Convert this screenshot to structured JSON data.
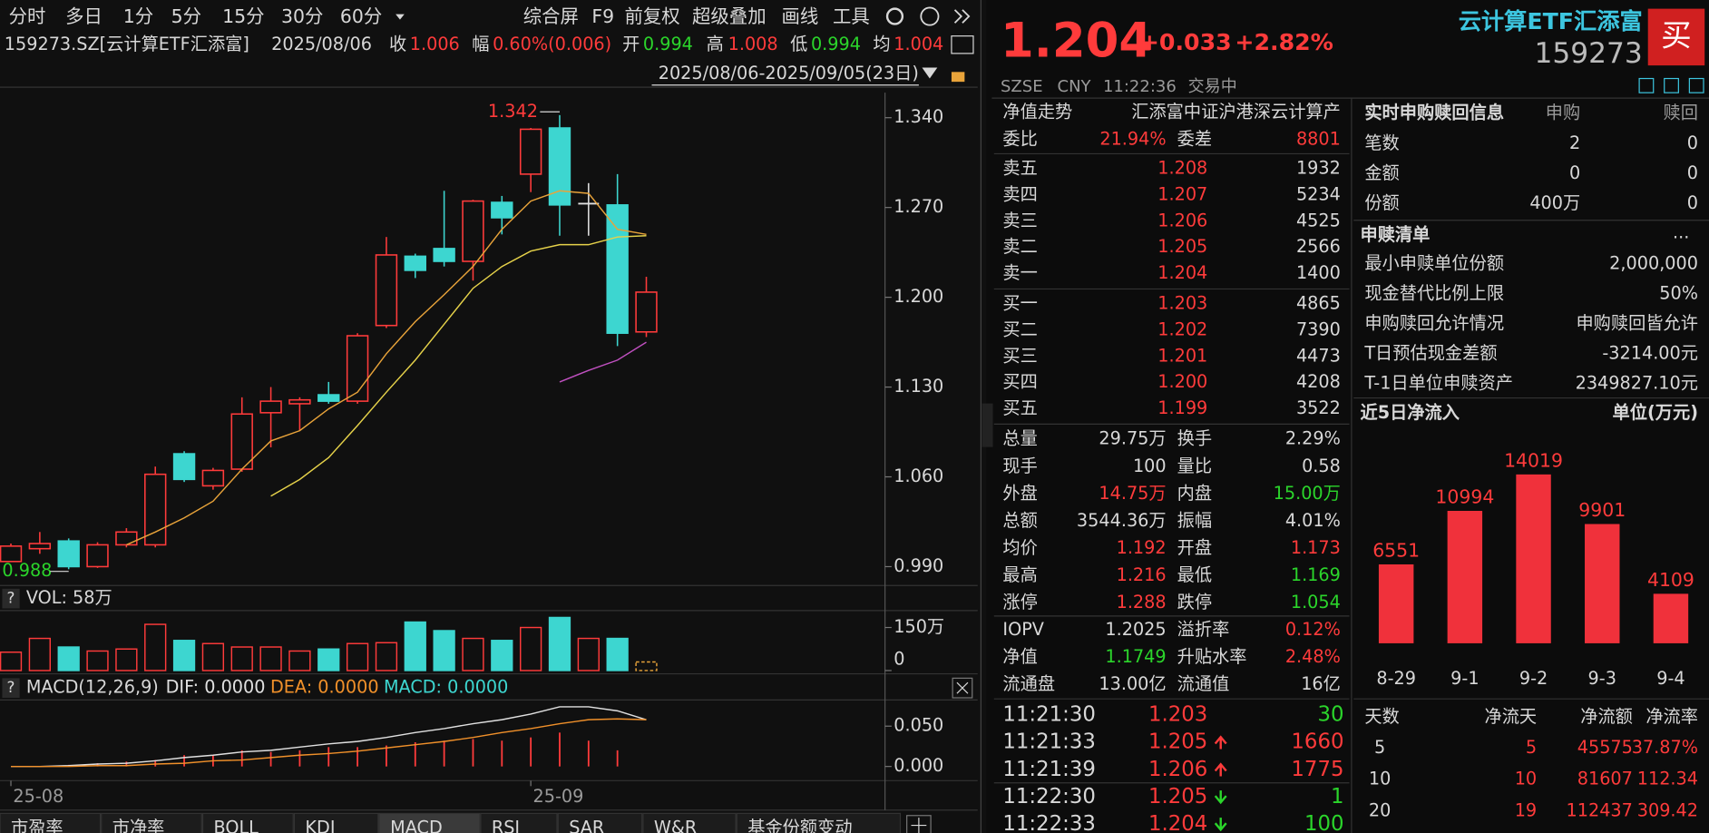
{
  "toolbar": {
    "periods": [
      "分时",
      "多日",
      "1分",
      "5分",
      "15分",
      "30分",
      "60分"
    ],
    "tools": [
      "综合屏",
      "F9",
      "前复权",
      "超级叠加",
      "画线",
      "工具"
    ]
  },
  "info": {
    "symbol": "159273.SZ[云计算ETF汇添富]",
    "date": "2025/08/06",
    "close_label": "收",
    "close": "1.006",
    "change_label": "幅",
    "change": "0.60%(0.006)",
    "open_label": "开",
    "open": "0.994",
    "high_label": "高",
    "high": "1.008",
    "low_label": "低",
    "low": "0.994",
    "avg_label": "均",
    "avg": "1.004",
    "range": "2025/08/06-2025/09/05(23日)"
  },
  "chart_data": [
    {
      "type": "candlestick",
      "up_color": "#ff3b3b",
      "down_color": "#3dd6d0",
      "open": [
        0.994,
        1.004,
        1.01,
        0.99,
        1.007,
        1.007,
        1.078,
        1.053,
        1.066,
        1.11,
        1.117,
        1.124,
        1.119,
        1.178,
        1.232,
        1.238,
        1.228,
        1.274,
        1.296,
        1.332,
        1.273,
        1.272,
        1.173
      ],
      "high": [
        1.008,
        1.017,
        1.012,
        1.009,
        1.02,
        1.068,
        1.08,
        1.067,
        1.122,
        1.13,
        1.122,
        1.134,
        1.172,
        1.247,
        1.234,
        1.283,
        1.276,
        1.279,
        1.332,
        1.342,
        1.289,
        1.296,
        1.216
      ],
      "low": [
        0.994,
        1.0,
        0.988,
        0.989,
        1.005,
        1.005,
        1.056,
        1.05,
        1.064,
        1.083,
        1.096,
        1.117,
        1.117,
        1.176,
        1.215,
        1.224,
        1.213,
        1.249,
        1.282,
        1.248,
        1.248,
        1.162,
        1.169
      ],
      "close": [
        1.006,
        1.008,
        0.99,
        1.007,
        1.017,
        1.062,
        1.058,
        1.065,
        1.109,
        1.119,
        1.12,
        1.119,
        1.17,
        1.233,
        1.221,
        1.228,
        1.275,
        1.262,
        1.331,
        1.272,
        1.273,
        1.172,
        1.204
      ],
      "series": [
        {
          "color": "#e8a33a",
          "values": [
            null,
            null,
            null,
            null,
            1.007,
            1.017,
            1.028,
            1.041,
            1.066,
            1.088,
            1.096,
            1.113,
            1.126,
            1.156,
            1.181,
            1.202,
            1.224,
            1.253,
            1.275,
            1.283,
            1.281,
            1.253,
            1.249
          ]
        },
        {
          "color": "#e6d24a",
          "values": [
            null,
            null,
            null,
            null,
            null,
            null,
            null,
            null,
            null,
            1.045,
            1.058,
            1.075,
            1.1,
            1.126,
            1.151,
            1.179,
            1.207,
            1.224,
            1.236,
            1.241,
            1.241,
            1.247,
            1.248
          ]
        },
        {
          "color": "#c050c0",
          "values": [
            null,
            null,
            null,
            null,
            null,
            null,
            null,
            null,
            null,
            null,
            null,
            null,
            null,
            null,
            null,
            null,
            null,
            null,
            null,
            1.134,
            1.143,
            1.151,
            1.165
          ]
        }
      ],
      "high_mark": 1.342,
      "low_mark": 0.988,
      "ylim": [
        0.977,
        1.3595
      ],
      "yticks": [
        {
          "value": 1.34,
          "label": "1.340"
        },
        {
          "value": 1.27,
          "label": "1.270"
        },
        {
          "value": 1.2,
          "label": "1.200"
        },
        {
          "value": 1.13,
          "label": "1.130"
        },
        {
          "value": 1.06,
          "label": "1.060"
        },
        {
          "value": 0.99,
          "label": "0.990"
        }
      ]
    },
    {
      "type": "volume",
      "title": "VOL: 58万",
      "values": [
        64,
        112,
        82,
        68,
        75,
        161,
        105,
        94,
        82,
        82,
        68,
        75,
        94,
        97,
        169,
        139,
        112,
        105,
        150,
        185,
        112,
        112,
        30
      ],
      "ylim": [
        0,
        190
      ],
      "yticks": [
        {
          "value": 150,
          "label": "150万"
        },
        0
      ]
    },
    {
      "type": "macd",
      "title": "MACD(12,26,9)",
      "categories": [
        "25-08",
        null,
        null,
        null,
        null,
        null,
        null,
        null,
        null,
        null,
        null,
        null,
        null,
        null,
        null,
        null,
        null,
        null,
        "25-09",
        null,
        null,
        null,
        null
      ],
      "series": [
        {
          "name": "DIF: 0.0000",
          "color": "#e0e0e0",
          "values": [
            0,
            0,
            0.001,
            0.003,
            0.004,
            0.007,
            0.011,
            0.014,
            0.018,
            0.02,
            0.024,
            0.028,
            0.031,
            0.036,
            0.042,
            0.047,
            0.053,
            0.058,
            0.065,
            0.074,
            0.074,
            0.069,
            0.058
          ]
        },
        {
          "name": "DEA: 0.0000",
          "color": "#f0902a",
          "values": [
            0,
            0,
            0,
            0.001,
            0.001,
            0.003,
            0.004,
            0.007,
            0.008,
            0.011,
            0.014,
            0.016,
            0.019,
            0.023,
            0.027,
            0.031,
            0.036,
            0.042,
            0.047,
            0.053,
            0.058,
            0.059,
            0.058
          ]
        },
        {
          "name": "MACD: 0.0000",
          "color": "#3dd6d0",
          "values": [
            0,
            0,
            0.002,
            0.004,
            0.006,
            0.008,
            0.014,
            0.014,
            0.02,
            0.018,
            0.02,
            0.024,
            0.024,
            0.026,
            0.03,
            0.032,
            0.034,
            0.032,
            0.036,
            0.042,
            0.032,
            0.02,
            0
          ]
        }
      ],
      "ylim": [
        -0.0122,
        0.0784
      ],
      "yticks": [
        {
          "value": 0.05,
          "label": "0.050"
        },
        {
          "value": 0,
          "label": "0.000"
        }
      ]
    },
    {
      "type": "bar",
      "title": "近5日净流入",
      "unit": "单位(万元)",
      "categories": [
        "8-29",
        "9-1",
        "9-2",
        "9-3",
        "9-4"
      ],
      "values": [
        6551,
        10994,
        14019,
        9901,
        4109
      ],
      "color": "#f0313b",
      "ylim": [
        0,
        17200
      ]
    }
  ],
  "quote": {
    "price": "1.204",
    "change": "+0.033",
    "change_pct": "+2.82%",
    "name": "云计算ETF汇添富",
    "code": "159273",
    "buy": "买",
    "exchange": "SZSE",
    "currency": "CNY",
    "time": "11:22:36",
    "status": "交易中"
  },
  "nav_row": [
    "净值走势",
    "汇添富中证沪港深云计算产"
  ],
  "order_ratio": [
    "委比",
    "21.94%",
    "委差",
    "8801"
  ],
  "asks": [
    [
      "卖五",
      "1.208",
      "1932"
    ],
    [
      "卖四",
      "1.207",
      "5234"
    ],
    [
      "卖三",
      "1.206",
      "4525"
    ],
    [
      "卖二",
      "1.205",
      "2566"
    ],
    [
      "卖一",
      "1.204",
      "1400"
    ]
  ],
  "bids": [
    [
      "买一",
      "1.203",
      "4865"
    ],
    [
      "买二",
      "1.202",
      "7390"
    ],
    [
      "买三",
      "1.201",
      "4473"
    ],
    [
      "买四",
      "1.200",
      "4208"
    ],
    [
      "买五",
      "1.199",
      "3522"
    ]
  ],
  "stats": [
    [
      "总量",
      "29.75万",
      "换手",
      "2.29%"
    ],
    [
      "现手",
      "100",
      "量比",
      "0.58"
    ],
    [
      "外盘",
      "14.75万",
      "内盘",
      "15.00万"
    ],
    [
      "总额",
      "3544.36万",
      "振幅",
      "4.01%"
    ],
    [
      "均价",
      "1.192",
      "开盘",
      "1.173"
    ],
    [
      "最高",
      "1.216",
      "最低",
      "1.169"
    ],
    [
      "涨停",
      "1.288",
      "跌停",
      "1.054"
    ]
  ],
  "fund_stats": [
    [
      "IOPV",
      "1.2025",
      "溢折率",
      "0.12%"
    ],
    [
      "净值",
      "1.1749",
      "升贴水率",
      "2.48%"
    ],
    [
      "流通盘",
      "13.00亿",
      "流通值",
      "16亿"
    ]
  ],
  "trades": [
    [
      "11:21:30",
      "1.203",
      "30"
    ],
    [
      "11:21:33",
      "1.205",
      "1660"
    ],
    [
      "11:21:39",
      "1.206",
      "1775"
    ],
    [
      "11:22:30",
      "1.205",
      "1"
    ],
    [
      "11:22:33",
      "1.204",
      "100"
    ]
  ],
  "subscription": {
    "title": "实时申购赎回信息",
    "cols": [
      "申购",
      "赎回"
    ],
    "rows": [
      [
        "笔数",
        "2",
        "0"
      ],
      [
        "金额",
        "0",
        "0"
      ],
      [
        "份额",
        "400万",
        "0"
      ]
    ]
  },
  "list": {
    "title": "申赎清单",
    "more": "...",
    "rows": [
      [
        "最小申赎单位份额",
        "2,000,000"
      ],
      [
        "现金替代比例上限",
        "50%"
      ],
      [
        "申购赎回允许情况",
        "申购赎回皆允许"
      ],
      [
        "T日预估现金差额",
        "-3214.00元"
      ],
      [
        "T-1日单位申赎资产",
        "2349827.10元"
      ]
    ]
  },
  "flow_table": {
    "header": [
      "天数",
      "净流天",
      "净流额",
      "净流率"
    ],
    "rows": [
      [
        "5",
        "5",
        "45575",
        "37.87%"
      ],
      [
        "10",
        "10",
        "81607",
        "112.34"
      ],
      [
        "20",
        "19",
        "112437",
        "309.42"
      ]
    ]
  },
  "tabs": [
    "市盈率",
    "市净率",
    "BOLL",
    "KDJ",
    "MACD",
    "RSI",
    "SAR",
    "W&R",
    "基金份额变动"
  ]
}
